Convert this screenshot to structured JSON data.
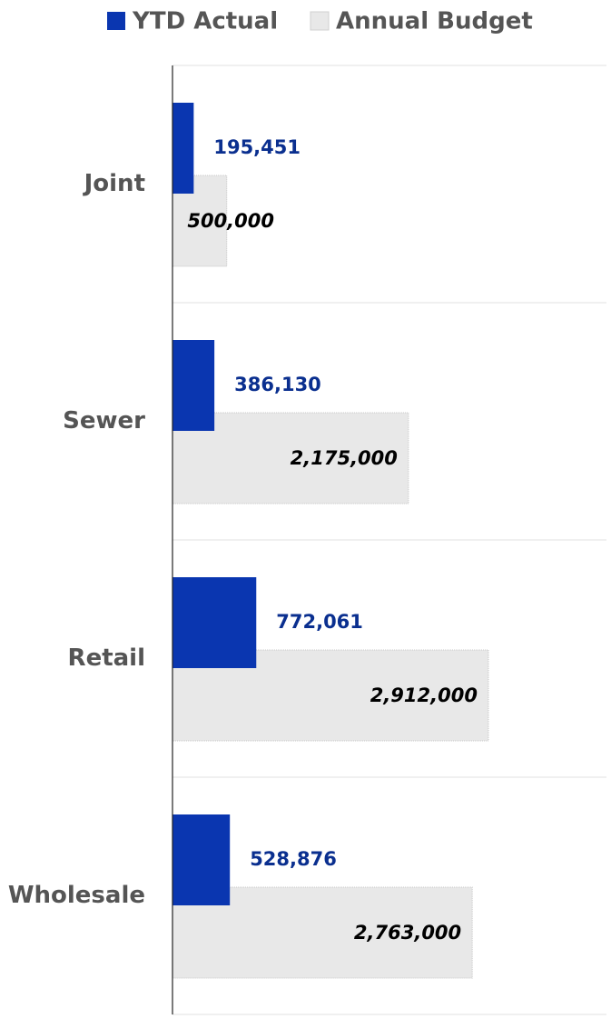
{
  "chart_data": {
    "type": "hbar",
    "categories": [
      "Joint",
      "Sewer",
      "Retail",
      "Wholesale"
    ],
    "series": [
      {
        "name": "YTD Actual",
        "color": "#0a36b0",
        "label_color": "#0a2f8f",
        "values": [
          195451,
          386130,
          772061,
          528876
        ],
        "value_labels": [
          "195,451",
          "386,130",
          "772,061",
          "528,876"
        ]
      },
      {
        "name": "Annual Budget",
        "color": "#e8e8e8",
        "label_color": "#000000",
        "values": [
          500000,
          2175000,
          2912000,
          2763000
        ],
        "value_labels": [
          "500,000",
          "2,175,000",
          "2,912,000",
          "2,763,000"
        ]
      }
    ],
    "xlim": [
      0,
      4000000
    ],
    "legend": "top",
    "grid": true
  }
}
